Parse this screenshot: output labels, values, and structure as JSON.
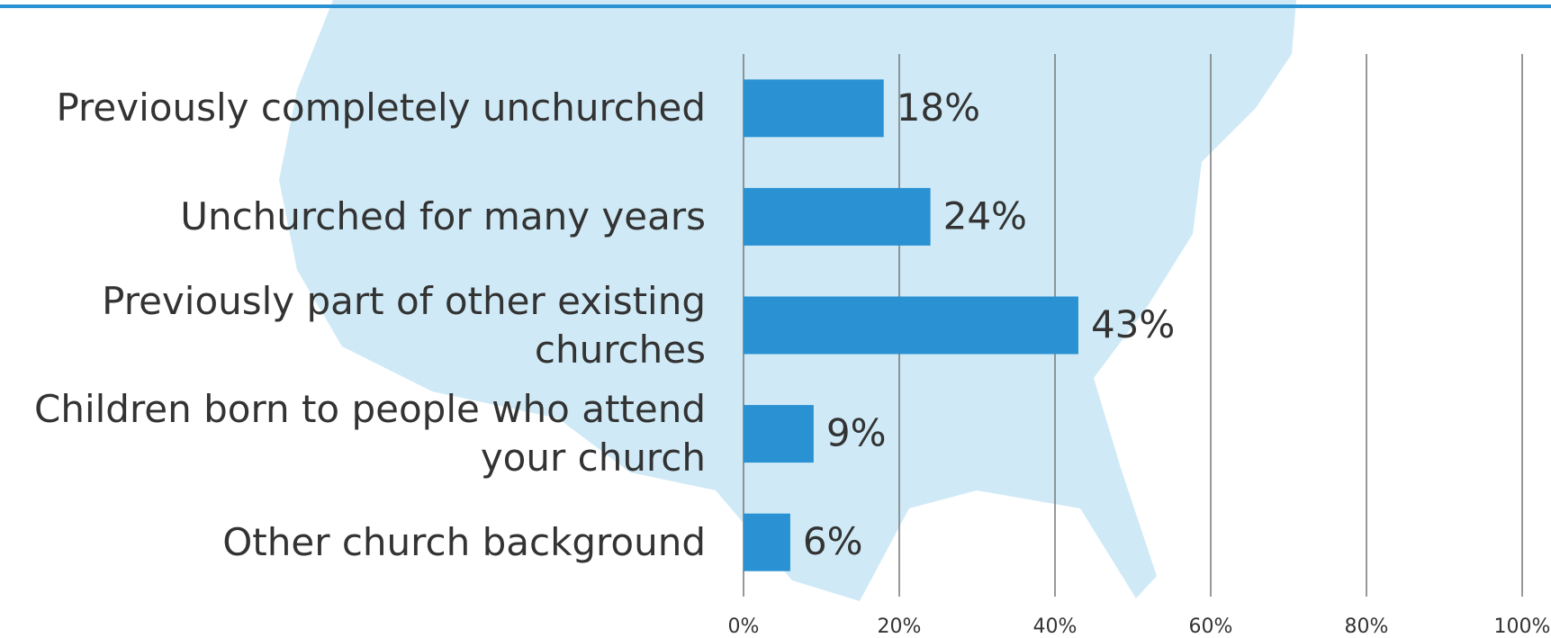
{
  "chart_data": {
    "type": "bar",
    "orientation": "horizontal",
    "categories": [
      "Previously completely unchurched",
      "Unchurched for many years",
      "Previously part of other existing churches",
      "Children born to people who attend your church",
      "Other church background"
    ],
    "values": [
      18,
      24,
      43,
      9,
      6
    ],
    "value_labels": [
      "18%",
      "24%",
      "43%",
      "9%",
      "6%"
    ],
    "color": "#2a91d2",
    "xlim": [
      0,
      100
    ],
    "xticks": [
      {
        "value": 0,
        "label": "0%"
      },
      {
        "value": 20,
        "label": "20%"
      },
      {
        "value": 40,
        "label": "40%"
      },
      {
        "value": 60,
        "label": "60%"
      },
      {
        "value": 80,
        "label": "80%"
      },
      {
        "value": 100,
        "label": "100%"
      }
    ],
    "grid": true
  }
}
